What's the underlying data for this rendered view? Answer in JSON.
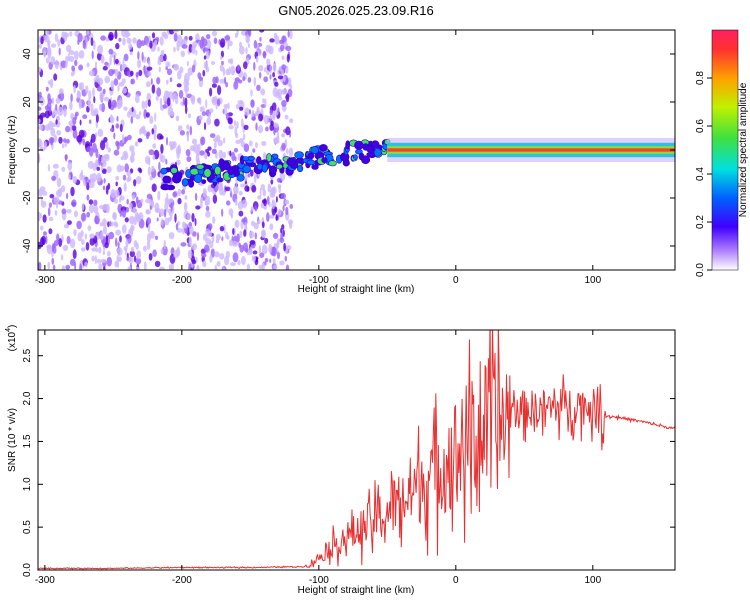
{
  "chart_data": [
    {
      "type": "heatmap",
      "title": "GN05.2026.025.23.09.R16",
      "xlabel": "Height of straight line (km)",
      "ylabel": "Frequency (Hz)",
      "xlim": [
        -305,
        160
      ],
      "ylim": [
        -50,
        50
      ],
      "xticks": [
        -300,
        -200,
        -100,
        0,
        100
      ],
      "yticks": [
        -40,
        -20,
        0,
        20,
        40
      ],
      "colorbar": {
        "label": "Normalized spectral amplitude",
        "range": [
          0.0,
          1.0
        ],
        "ticks": [
          "0.0",
          "0.2",
          "0.4",
          "0.6",
          "0.8"
        ]
      },
      "regions": [
        {
          "description": "noise cloud",
          "x_range": [
            -305,
            -120
          ],
          "freq_range": [
            -50,
            50
          ],
          "amplitude": 0.15
        },
        {
          "description": "emerging signal",
          "x_range": [
            -215,
            -50
          ],
          "freq_range": [
            -15,
            10
          ],
          "amplitude": 0.45
        },
        {
          "description": "strong ridge",
          "x_range": [
            -50,
            160
          ],
          "freq_range": [
            -3,
            3
          ],
          "amplitude": 0.95
        }
      ]
    },
    {
      "type": "line",
      "title": "",
      "xlabel": "Height of straight line (km)",
      "ylabel": "SNR (10 * v/v)",
      "yscale_note": "(x10",
      "yscale_exp": "4",
      "xlim": [
        -305,
        160
      ],
      "ylim": [
        0.0,
        2.8
      ],
      "xticks": [
        -300,
        -200,
        -100,
        0,
        100
      ],
      "yticks": [
        "0.0",
        "0.5",
        "1.0",
        "1.5",
        "2.0",
        "2.5"
      ],
      "color": "#e83030",
      "series": [
        {
          "name": "SNR",
          "x": [
            -305,
            -250,
            -200,
            -150,
            -110,
            -100,
            -90,
            -80,
            -70,
            -60,
            -50,
            -40,
            -30,
            -20,
            -10,
            0,
            10,
            20,
            30,
            40,
            50,
            60,
            70,
            80,
            90,
            100,
            105,
            110,
            120,
            130,
            140,
            150,
            160
          ],
          "y": [
            0.02,
            0.02,
            0.03,
            0.03,
            0.04,
            0.15,
            0.3,
            0.4,
            0.5,
            0.6,
            0.72,
            0.85,
            1.0,
            1.15,
            1.3,
            1.45,
            1.6,
            1.72,
            1.82,
            1.88,
            1.9,
            1.9,
            1.92,
            1.95,
            1.95,
            1.92,
            1.85,
            1.8,
            1.78,
            1.75,
            1.72,
            1.68,
            1.65
          ]
        }
      ]
    }
  ]
}
